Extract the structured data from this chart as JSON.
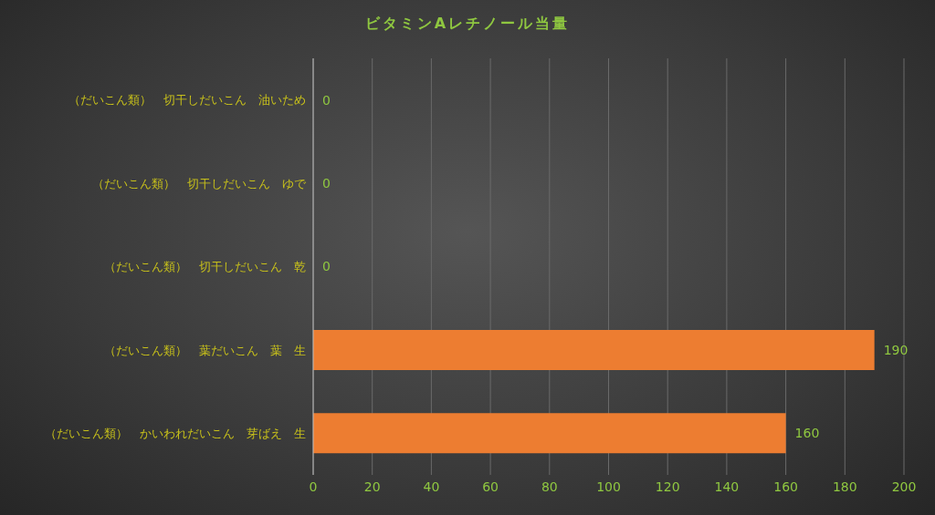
{
  "chart_data": {
    "type": "bar",
    "orientation": "horizontal",
    "title": "ビタミンAレチノール当量",
    "categories": [
      "（だいこん類）　切干しだいこん　油いため",
      "（だいこん類）　切干しだいこん　ゆで",
      "（だいこん類）　切干しだいこん　乾",
      "（だいこん類）　葉だいこん　葉　生",
      "（だいこん類）　かいわれだいこん　芽ばえ　生"
    ],
    "values": [
      0,
      0,
      0,
      190,
      160
    ],
    "color": "#ed7d31",
    "xlim": [
      0,
      200
    ],
    "xticks": [
      0,
      20,
      40,
      60,
      80,
      100,
      120,
      140,
      160,
      180,
      200
    ],
    "grid": "x",
    "data_labels": true
  }
}
